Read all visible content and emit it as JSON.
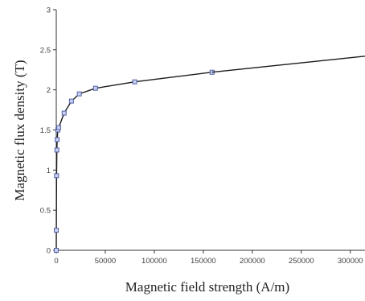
{
  "chart_data": {
    "type": "line",
    "title": "",
    "xlabel": "Magnetic field strength (A/m)",
    "ylabel": "Magnetic flux density (T)",
    "xlim": [
      0,
      315000
    ],
    "ylim": [
      0,
      3
    ],
    "xticks": [
      0,
      50000,
      100000,
      150000,
      200000,
      250000,
      300000
    ],
    "yticks": [
      0,
      0.5,
      1,
      1.5,
      2,
      2.5,
      3
    ],
    "grid": false,
    "legend": "none",
    "colors": {
      "line": "#1a1a1a",
      "marker": "#5060a8",
      "axis": "#333333"
    },
    "series": [
      {
        "markers": true,
        "points": [
          [
            0,
            0
          ],
          [
            50,
            0.25
          ],
          [
            300,
            0.93
          ],
          [
            600,
            1.25
          ],
          [
            900,
            1.38
          ],
          [
            1600,
            1.5
          ],
          [
            2500,
            1.53
          ],
          [
            8000,
            1.71
          ],
          [
            15500,
            1.86
          ],
          [
            23500,
            1.95
          ],
          [
            40000,
            2.02
          ],
          [
            80000,
            2.1
          ],
          [
            159000,
            2.22
          ]
        ]
      },
      {
        "markers": false,
        "points": [
          [
            159000,
            2.22
          ],
          [
            315000,
            2.42
          ]
        ]
      }
    ]
  }
}
